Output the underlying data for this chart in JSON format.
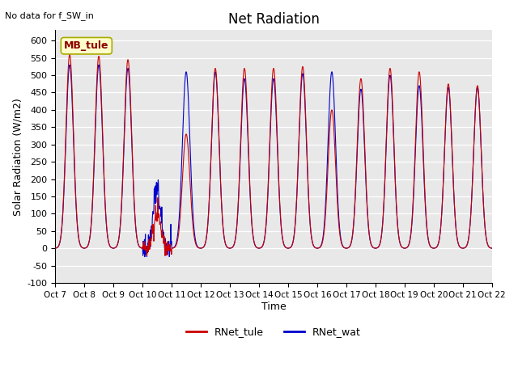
{
  "title": "Net Radiation",
  "note": "No data for f_SW_in",
  "ylabel": "Solar Radiation (W/m2)",
  "xlabel": "Time",
  "ylim": [
    -100,
    630
  ],
  "yticks": [
    -100,
    -50,
    0,
    50,
    100,
    150,
    200,
    250,
    300,
    350,
    400,
    450,
    500,
    550,
    600
  ],
  "xtick_labels": [
    "Oct 7",
    "Oct 8",
    "Oct 9",
    "Oct 10",
    "Oct 11",
    "Oct 12",
    "Oct 13",
    "Oct 14",
    "Oct 15",
    "Oct 16",
    "Oct 17",
    "Oct 18",
    "Oct 19",
    "Oct 20",
    "Oct 21",
    "Oct 22"
  ],
  "legend_labels": [
    "RNet_tule",
    "RNet_wat"
  ],
  "mb_tule_label": "MB_tule",
  "bg_color": "#e8e8e8",
  "line_color_tule": "#cc0000",
  "line_color_wat": "#0000cc",
  "n_days": 15,
  "points_per_day": 96,
  "day_peaks_tule": [
    560,
    555,
    545,
    100,
    330,
    520,
    520,
    520,
    525,
    400,
    490,
    520,
    510,
    475,
    470
  ],
  "day_peaks_wat": [
    530,
    530,
    520,
    155,
    510,
    510,
    490,
    490,
    505,
    510,
    460,
    500,
    470,
    465,
    465
  ],
  "night_base_tule": -70,
  "night_base_wat": -75
}
